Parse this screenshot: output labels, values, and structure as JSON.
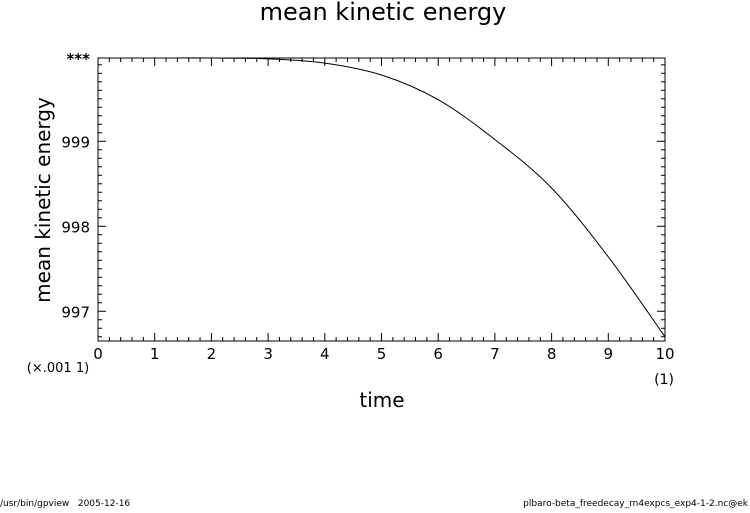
{
  "footer": {
    "left": "/usr/bin/gpview   2005-12-16",
    "right": "plbaro-beta_freedecay_rn4expcs_exp4-1-2.nc@ek"
  },
  "chart_data": {
    "type": "line",
    "title": "mean kinetic energy",
    "xlabel": "time",
    "ylabel": "mean kinetic energy",
    "xlim": [
      0,
      10
    ],
    "ylim": [
      996.65,
      999.98
    ],
    "x_ticks": [
      "0",
      "1",
      "2",
      "3",
      "4",
      "5",
      "6",
      "7",
      "8",
      "9",
      "10"
    ],
    "x_tick_values": [
      0,
      1,
      2,
      3,
      4,
      5,
      6,
      7,
      8,
      9,
      10
    ],
    "x_unit_label": "(1)",
    "y_ticks": [
      "997",
      "998",
      "999",
      "***"
    ],
    "y_tick_values": [
      997,
      998,
      999,
      999.98
    ],
    "y_scale_label": "(×.001 1)",
    "grid": false,
    "series": [
      {
        "color": "#000000",
        "x": [
          0,
          1,
          2,
          3,
          4,
          5,
          6,
          7,
          8,
          9,
          10
        ],
        "y": [
          999.98,
          999.98,
          999.98,
          999.97,
          999.92,
          999.78,
          999.49,
          999.02,
          998.45,
          997.64,
          996.7
        ]
      }
    ]
  }
}
